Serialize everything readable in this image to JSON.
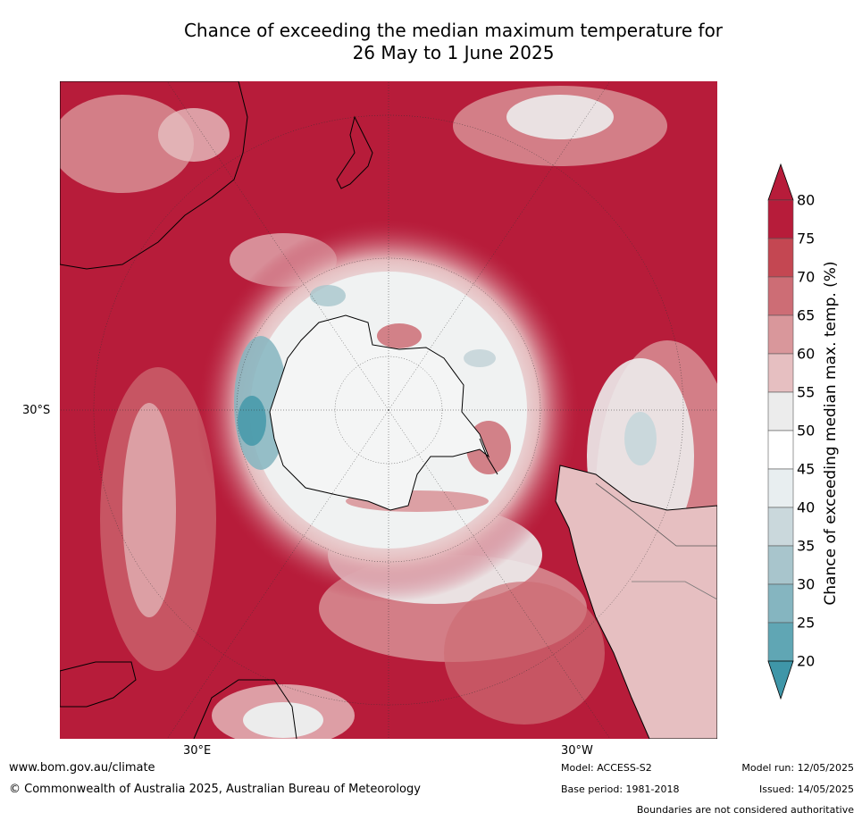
{
  "title_line1": "Chance of exceeding the median maximum temperature for",
  "title_line2": "26 May to 1 June 2025",
  "axis_labels": {
    "lat": "30°S",
    "lon_east": "30°E",
    "lon_west": "30°W"
  },
  "colorbar": {
    "label": "Chance of exceeding median max. temp. (%)",
    "ticks": [
      "80",
      "75",
      "70",
      "65",
      "60",
      "55",
      "50",
      "45",
      "40",
      "35",
      "30",
      "25",
      "20"
    ],
    "colors": [
      "#b71c3a",
      "#c44752",
      "#cd6d75",
      "#d9979b",
      "#e6bfc1",
      "#ececec",
      "#ffffff",
      "#e8eef0",
      "#cad8dc",
      "#a8c5cc",
      "#85b5c0",
      "#60a6b4",
      "#3f96a8"
    ]
  },
  "footer": {
    "website": "www.bom.gov.au/climate",
    "copyright": "© Commonwealth of Australia 2025, Australian Bureau of Meteorology",
    "model": "Model: ACCESS-S2",
    "base_period": "Base period: 1981-2018",
    "model_run": "Model run: 12/05/2025",
    "issued": "Issued: 14/05/2025",
    "disclaimer": "Boundaries are not considered authoritative"
  }
}
